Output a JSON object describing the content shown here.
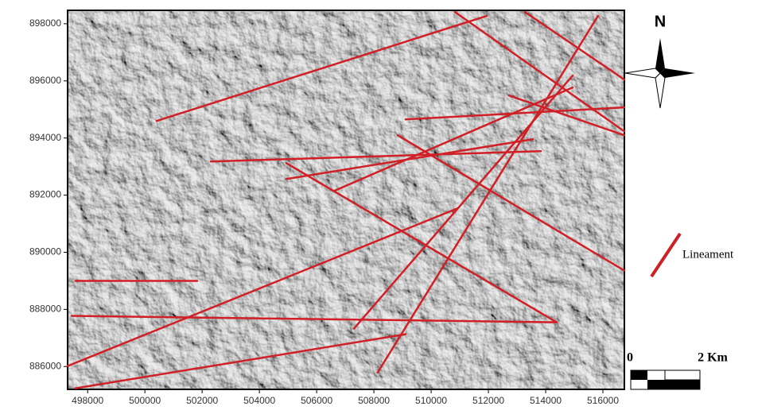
{
  "chart_data": {
    "type": "map",
    "xlim": [
      497300,
      516750
    ],
    "ylim": [
      885200,
      898470
    ],
    "xticks": [
      498000,
      500000,
      502000,
      504000,
      506000,
      508000,
      510000,
      512000,
      514000,
      516000
    ],
    "yticks": [
      886000,
      888000,
      890000,
      892000,
      894000,
      896000,
      898000
    ],
    "color": "#d11f26",
    "legend_label": "Lineament",
    "north_label": "N",
    "scale_labels": [
      "0",
      "2 Km"
    ],
    "lineaments": [
      {
        "x1": 500411,
        "y1": 894598,
        "x2": 511939,
        "y2": 898275
      },
      {
        "x1": 510829,
        "y1": 898414,
        "x2": 516746,
        "y2": 894235
      },
      {
        "x1": 513273,
        "y1": 898414,
        "x2": 516746,
        "y2": 896046
      },
      {
        "x1": 508829,
        "y1": 894097,
        "x2": 516746,
        "y2": 889360
      },
      {
        "x1": 504940,
        "y1": 893121,
        "x2": 514385,
        "y2": 887549
      },
      {
        "x1": 497300,
        "y1": 886017,
        "x2": 510912,
        "y2": 891533
      },
      {
        "x1": 497578,
        "y1": 885237,
        "x2": 509107,
        "y2": 887131
      },
      {
        "x1": 497439,
        "y1": 887772,
        "x2": 514385,
        "y2": 887549
      },
      {
        "x1": 497578,
        "y1": 888998,
        "x2": 501828,
        "y2": 888998
      },
      {
        "x1": 508134,
        "y1": 885794,
        "x2": 515829,
        "y2": 898275
      },
      {
        "x1": 507301,
        "y1": 887326,
        "x2": 514941,
        "y2": 896185
      },
      {
        "x1": 502300,
        "y1": 893177,
        "x2": 513829,
        "y2": 893539
      },
      {
        "x1": 504940,
        "y1": 892564,
        "x2": 513551,
        "y2": 893957
      },
      {
        "x1": 509107,
        "y1": 894653,
        "x2": 516746,
        "y2": 895071
      },
      {
        "x1": 506606,
        "y1": 892146,
        "x2": 514941,
        "y2": 895768
      },
      {
        "x1": 512717,
        "y1": 895489,
        "x2": 516746,
        "y2": 894097
      }
    ]
  }
}
